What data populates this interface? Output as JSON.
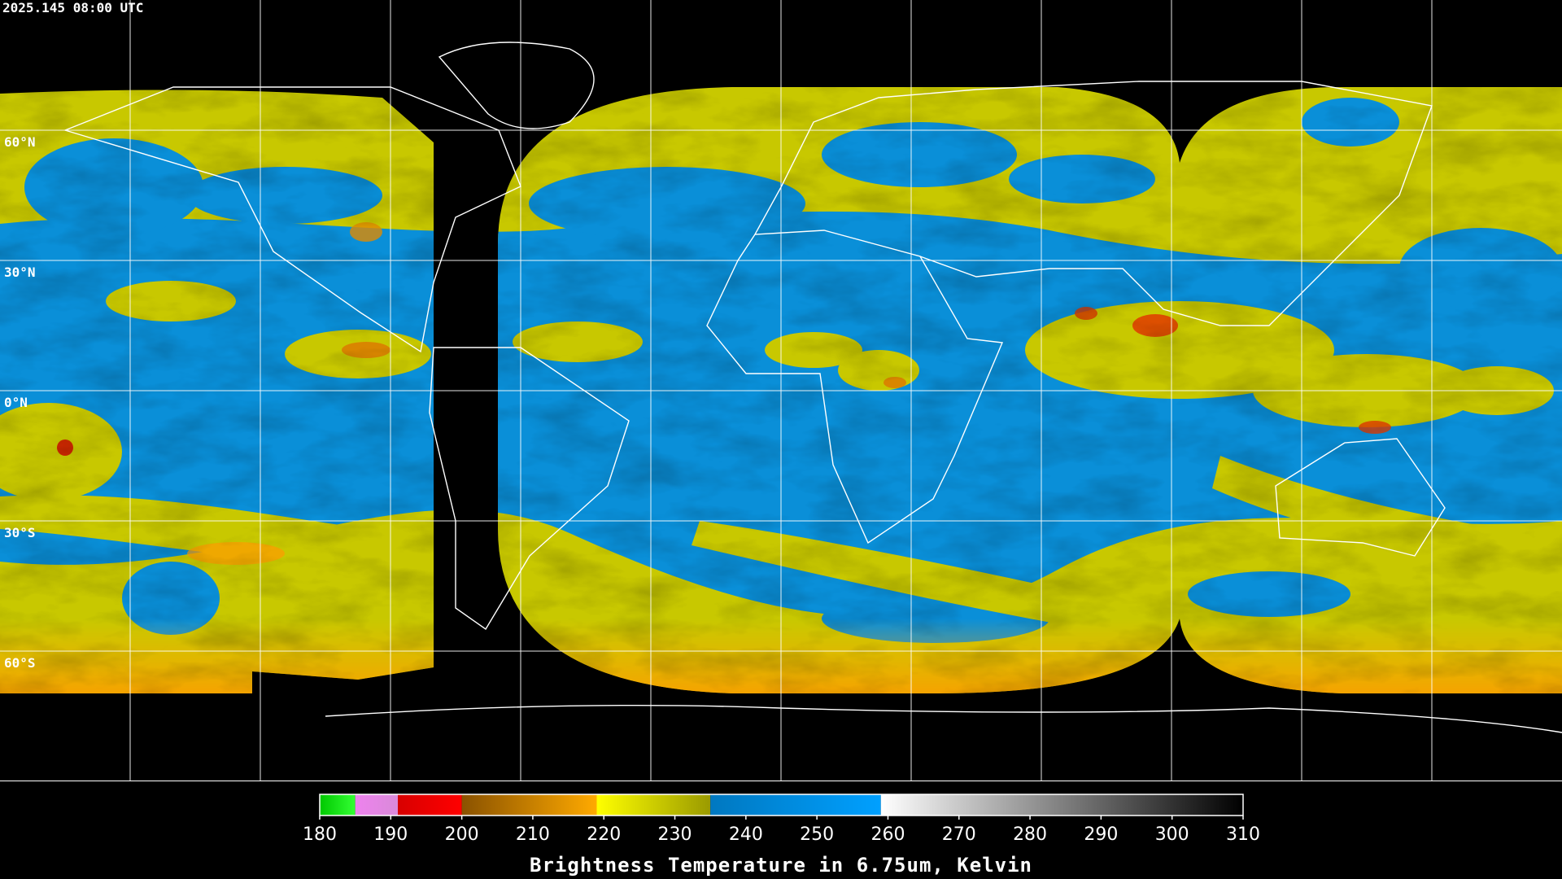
{
  "title": "2025.145 08:00 UTC",
  "lat_labels": [
    "60°N",
    "30°N",
    "0°N",
    "30°S",
    "60°S"
  ],
  "colorbar": {
    "label": "Brightness Temperature in 6.75um, Kelvin",
    "range": [
      180,
      310
    ],
    "ticks": [
      180,
      190,
      200,
      210,
      220,
      230,
      240,
      250,
      260,
      270,
      280,
      290,
      300,
      310
    ],
    "segments": [
      {
        "from": 180,
        "to": 185,
        "colors": [
          "#00c800",
          "#33ff33"
        ]
      },
      {
        "from": 185,
        "to": 191,
        "colors": [
          "#ee82ee",
          "#d98ad9"
        ]
      },
      {
        "from": 191,
        "to": 200,
        "colors": [
          "#d80000",
          "#ff0000"
        ]
      },
      {
        "from": 200,
        "to": 219,
        "colors": [
          "#8a5200",
          "#ffaa00"
        ]
      },
      {
        "from": 219,
        "to": 235,
        "colors": [
          "#ffff00",
          "#9a9a00"
        ]
      },
      {
        "from": 235,
        "to": 259,
        "colors": [
          "#0078c0",
          "#00a0ff"
        ]
      },
      {
        "from": 259,
        "to": 310,
        "colors": [
          "#ffffff",
          "#000000"
        ]
      }
    ]
  }
}
